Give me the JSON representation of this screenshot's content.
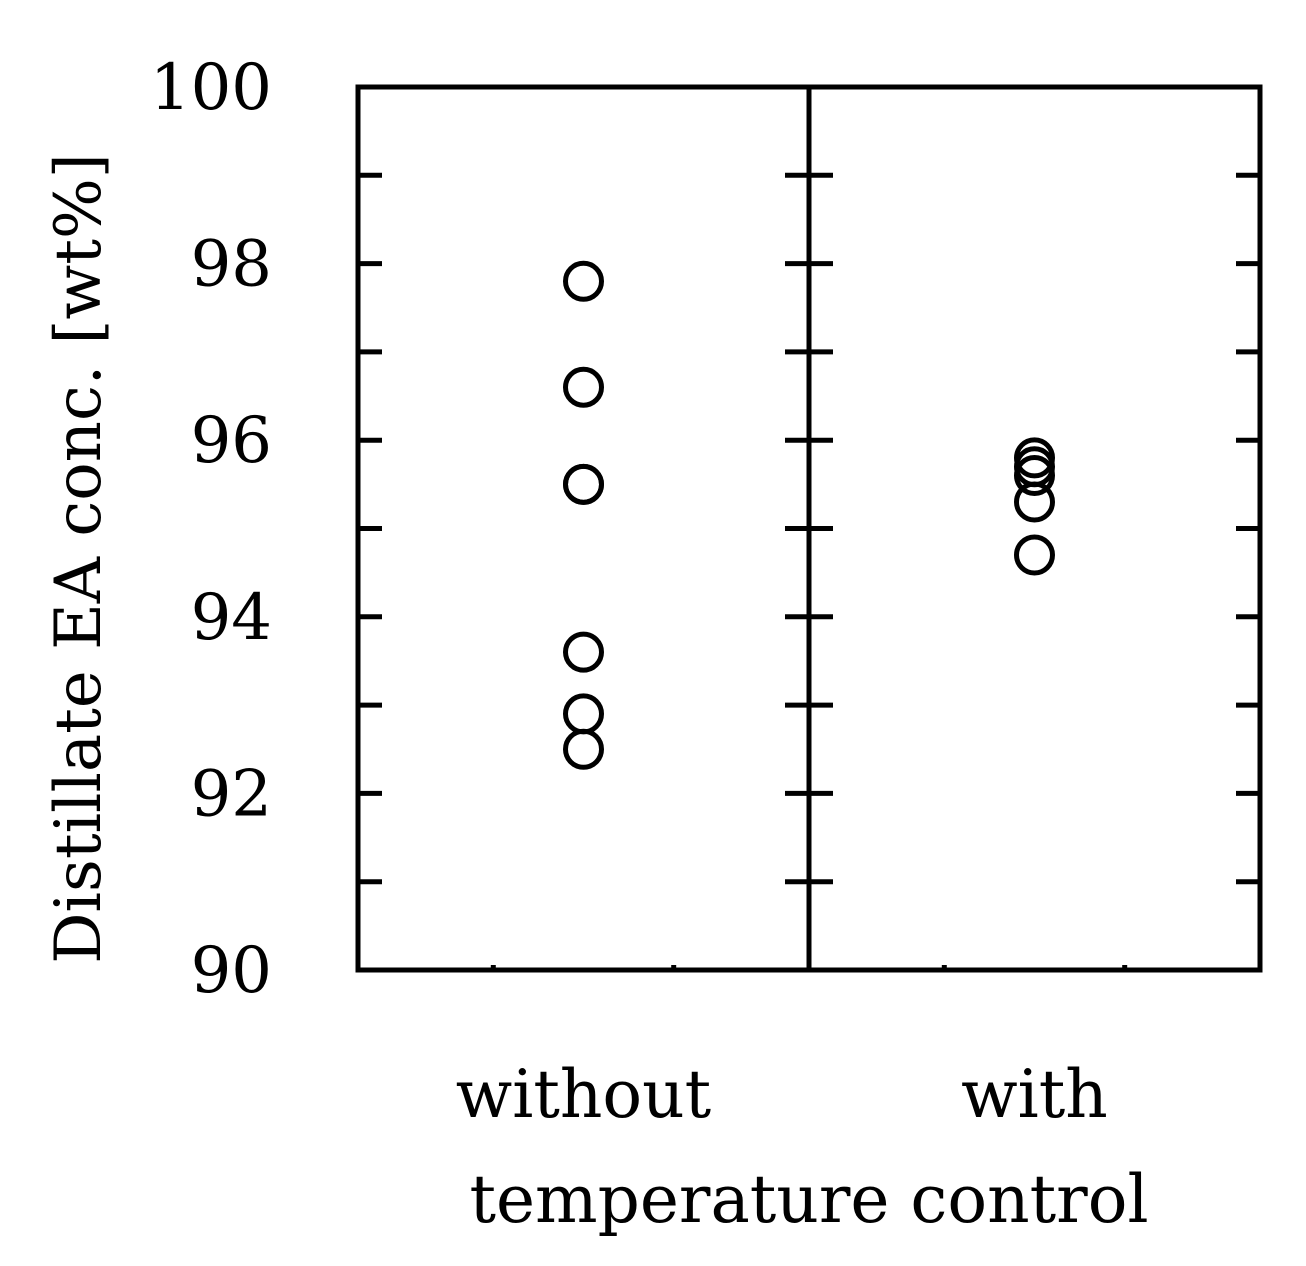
{
  "chart_data": {
    "type": "scatter",
    "ylabel": "Distillate EA conc. [wt%]",
    "xlabel": "temperature control",
    "categories": [
      "without",
      "with"
    ],
    "ylim": [
      90,
      100
    ],
    "yticks": [
      90,
      92,
      94,
      96,
      98,
      100
    ],
    "yticks_minor": [
      91,
      93,
      95,
      97,
      99
    ],
    "grid": false,
    "marker": "open-circle",
    "series": [
      {
        "category": "without",
        "values": [
          97.8,
          96.6,
          95.5,
          95.5,
          93.6,
          92.9,
          92.5
        ]
      },
      {
        "category": "with",
        "values": [
          95.8,
          95.7,
          95.6,
          95.3,
          94.7
        ]
      }
    ]
  }
}
